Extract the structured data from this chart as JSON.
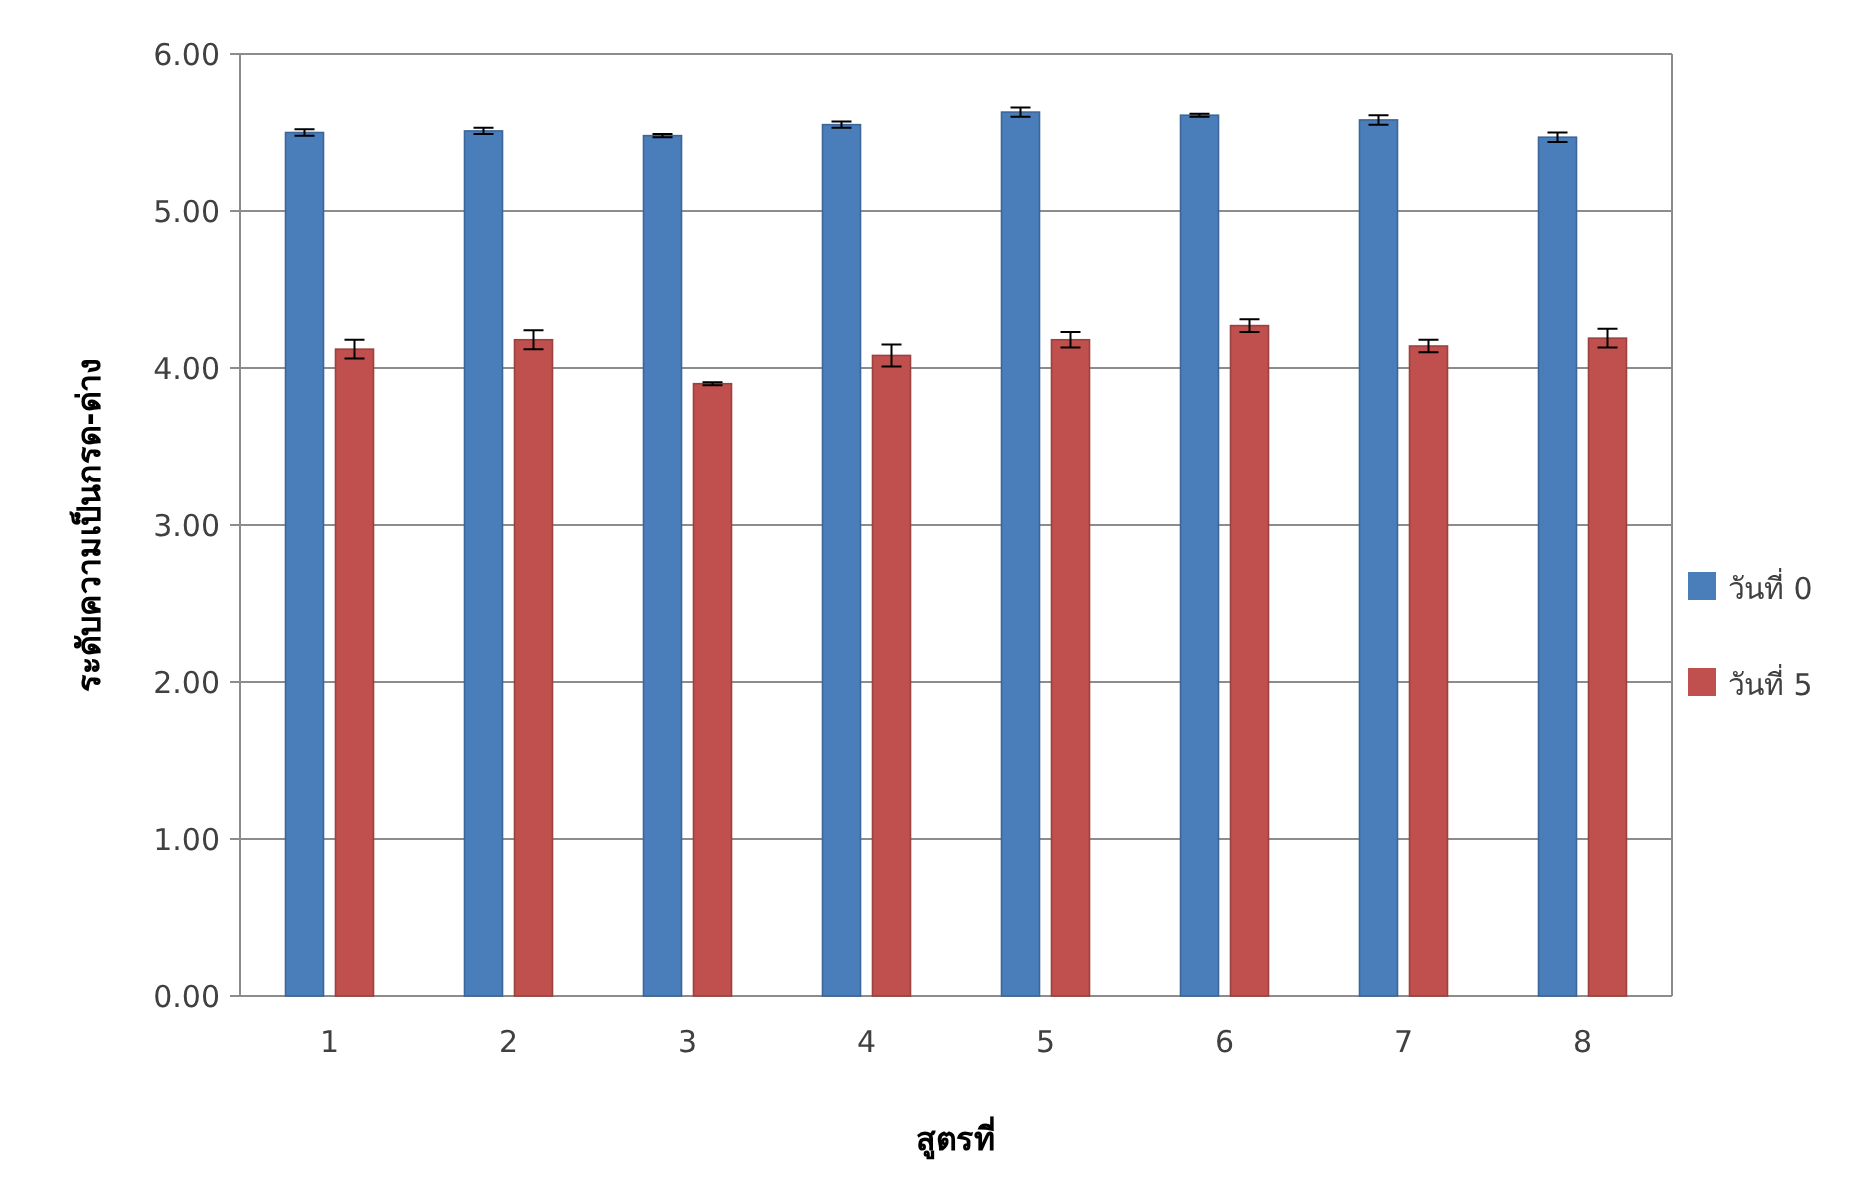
{
  "chart_data": {
    "type": "bar",
    "xlabel": "สูตรที่",
    "ylabel": "ระดับความเป็นกรด-ด่าง",
    "categories": [
      "1",
      "2",
      "3",
      "4",
      "5",
      "6",
      "7",
      "8"
    ],
    "series": [
      {
        "name": "วันที่ 0",
        "color": "#4a7ebb",
        "values": [
          5.5,
          5.51,
          5.48,
          5.55,
          5.63,
          5.61,
          5.58,
          5.47
        ],
        "errors": [
          0.02,
          0.02,
          0.01,
          0.02,
          0.03,
          0.01,
          0.03,
          0.03
        ]
      },
      {
        "name": "วันที่ 5",
        "color": "#c0504d",
        "values": [
          4.12,
          4.18,
          3.9,
          4.08,
          4.18,
          4.27,
          4.14,
          4.19
        ],
        "errors": [
          0.06,
          0.06,
          0.01,
          0.07,
          0.05,
          0.04,
          0.04,
          0.06
        ]
      }
    ],
    "ylim": [
      0,
      6
    ],
    "yticks": [
      {
        "value": 0,
        "label": "0.00"
      },
      {
        "value": 1,
        "label": "1.00"
      },
      {
        "value": 2,
        "label": "2.00"
      },
      {
        "value": 3,
        "label": "3.00"
      },
      {
        "value": 4,
        "label": "4.00"
      },
      {
        "value": 5,
        "label": "5.00"
      },
      {
        "value": 6,
        "label": "6.00"
      }
    ],
    "grid": "y",
    "legend": "right"
  }
}
